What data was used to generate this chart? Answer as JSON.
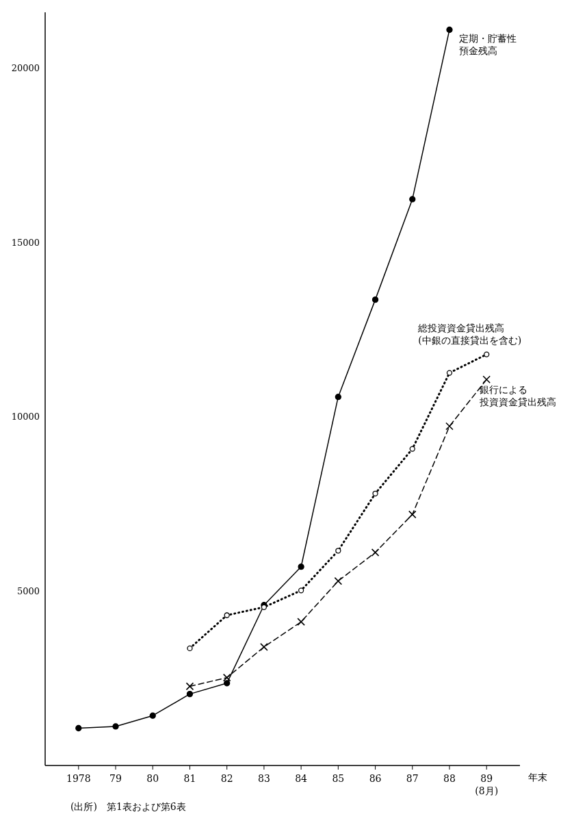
{
  "chart_data": {
    "type": "line",
    "xlabel": "年末",
    "categories": [
      "1978",
      "79",
      "80",
      "81",
      "82",
      "83",
      "84",
      "85",
      "86",
      "87",
      "88",
      "89\n(8月)"
    ],
    "series": [
      {
        "name": "定期・貯蓄性預金残高",
        "color": "#000000",
        "line_style": "solid",
        "marker": "circle",
        "values": [
          1070,
          1120,
          1430,
          2050,
          2360,
          4600,
          5700,
          10570,
          13360,
          16240,
          21100,
          null
        ]
      },
      {
        "name": "総投資資金貸出残高(中銀の直接貸出を含む)",
        "color": "#000000",
        "line_style": "dotted",
        "marker": "circle",
        "values": [
          null,
          null,
          null,
          3360,
          4310,
          4540,
          5020,
          6160,
          7800,
          9080,
          11260,
          11790
        ]
      },
      {
        "name": "銀行による投資資金貸出残高",
        "color": "#000000",
        "line_style": "dashed",
        "marker": "cross",
        "values": [
          null,
          null,
          null,
          2270,
          2520,
          3400,
          4120,
          5290,
          6110,
          7200,
          9730,
          11070
        ]
      }
    ],
    "ylim": [
      0,
      21600
    ],
    "yticks": [
      5000,
      10000,
      15000,
      20000
    ],
    "grid": false,
    "annotations": [
      "(出所)　第1表および第6表"
    ]
  }
}
